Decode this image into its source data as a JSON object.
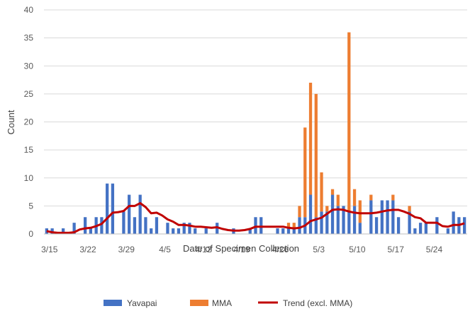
{
  "chart_data": {
    "type": "bar",
    "stacked": true,
    "xlabel": "Date of Specimen Collection",
    "ylabel": "Count",
    "ylim": [
      0,
      40
    ],
    "yticks": [
      0,
      5,
      10,
      15,
      20,
      25,
      30,
      35,
      40
    ],
    "grid": true,
    "legend_position": "bottom",
    "x_start_date": "3/14",
    "x_end_date": "5/29",
    "x_tick_labels": [
      "3/15",
      "3/22",
      "3/29",
      "4/5",
      "4/12",
      "4/19",
      "4/26",
      "5/3",
      "5/10",
      "5/17",
      "5/24"
    ],
    "colors": {
      "yavapai": "#4472C4",
      "mma": "#ED7D31",
      "trend": "#C00000",
      "grid": "#D9D9D9",
      "axis": "#BFBFBF"
    },
    "series": [
      {
        "name": "Yavapai",
        "kind": "bar",
        "points": [
          [
            "3/14",
            1
          ],
          [
            "3/15",
            1
          ],
          [
            "3/17",
            1
          ],
          [
            "3/19",
            2
          ],
          [
            "3/21",
            3
          ],
          [
            "3/22",
            1
          ],
          [
            "3/23",
            3
          ],
          [
            "3/24",
            3
          ],
          [
            "3/25",
            9
          ],
          [
            "3/26",
            9
          ],
          [
            "3/28",
            4
          ],
          [
            "3/29",
            7
          ],
          [
            "3/30",
            3
          ],
          [
            "3/31",
            7
          ],
          [
            "4/1",
            3
          ],
          [
            "4/2",
            1
          ],
          [
            "4/3",
            3
          ],
          [
            "4/5",
            2
          ],
          [
            "4/6",
            1
          ],
          [
            "4/7",
            1
          ],
          [
            "4/8",
            2
          ],
          [
            "4/9",
            2
          ],
          [
            "4/10",
            1
          ],
          [
            "4/12",
            1
          ],
          [
            "4/14",
            2
          ],
          [
            "4/17",
            1
          ],
          [
            "4/20",
            1
          ],
          [
            "4/21",
            3
          ],
          [
            "4/22",
            3
          ],
          [
            "4/25",
            1
          ],
          [
            "4/26",
            1
          ],
          [
            "4/27",
            1
          ],
          [
            "4/28",
            1
          ],
          [
            "4/29",
            3
          ],
          [
            "4/30",
            3
          ],
          [
            "5/1",
            7
          ],
          [
            "5/2",
            3
          ],
          [
            "5/3",
            4
          ],
          [
            "5/4",
            4
          ],
          [
            "5/5",
            7
          ],
          [
            "5/6",
            5
          ],
          [
            "5/7",
            5
          ],
          [
            "5/8",
            4
          ],
          [
            "5/9",
            5
          ],
          [
            "5/10",
            2
          ],
          [
            "5/12",
            6
          ],
          [
            "5/13",
            3
          ],
          [
            "5/14",
            6
          ],
          [
            "5/15",
            6
          ],
          [
            "5/16",
            6
          ],
          [
            "5/17",
            3
          ],
          [
            "5/19",
            4
          ],
          [
            "5/20",
            1
          ],
          [
            "5/21",
            2
          ],
          [
            "5/22",
            2
          ],
          [
            "5/24",
            3
          ],
          [
            "5/26",
            1
          ],
          [
            "5/27",
            4
          ],
          [
            "5/28",
            3
          ],
          [
            "5/29",
            3
          ]
        ]
      },
      {
        "name": "MMA",
        "kind": "bar",
        "points": [
          [
            "4/27",
            1
          ],
          [
            "4/28",
            1
          ],
          [
            "4/29",
            2
          ],
          [
            "4/30",
            16
          ],
          [
            "5/1",
            20
          ],
          [
            "5/2",
            22
          ],
          [
            "5/3",
            7
          ],
          [
            "5/4",
            1
          ],
          [
            "5/5",
            1
          ],
          [
            "5/6",
            2
          ],
          [
            "5/8",
            32
          ],
          [
            "5/9",
            3
          ],
          [
            "5/10",
            4
          ],
          [
            "5/12",
            1
          ],
          [
            "5/16",
            1
          ],
          [
            "5/19",
            1
          ]
        ]
      },
      {
        "name": "Trend (excl. MMA)",
        "kind": "line",
        "points": [
          [
            "3/14",
            0.5
          ],
          [
            "3/15",
            0.3
          ],
          [
            "3/16",
            0.2
          ],
          [
            "3/17",
            0.2
          ],
          [
            "3/18",
            0.2
          ],
          [
            "3/19",
            0.3
          ],
          [
            "3/20",
            0.8
          ],
          [
            "3/21",
            1.0
          ],
          [
            "3/22",
            1.1
          ],
          [
            "3/23",
            1.4
          ],
          [
            "3/24",
            1.8
          ],
          [
            "3/25",
            2.8
          ],
          [
            "3/26",
            3.8
          ],
          [
            "3/27",
            3.9
          ],
          [
            "3/28",
            4.1
          ],
          [
            "3/29",
            5.0
          ],
          [
            "3/30",
            5.0
          ],
          [
            "3/31",
            5.5
          ],
          [
            "4/1",
            4.8
          ],
          [
            "4/2",
            3.7
          ],
          [
            "4/3",
            3.8
          ],
          [
            "4/4",
            3.3
          ],
          [
            "4/5",
            2.6
          ],
          [
            "4/6",
            2.2
          ],
          [
            "4/7",
            1.6
          ],
          [
            "4/8",
            1.6
          ],
          [
            "4/9",
            1.5
          ],
          [
            "4/10",
            1.3
          ],
          [
            "4/11",
            1.3
          ],
          [
            "4/12",
            1.2
          ],
          [
            "4/13",
            1.1
          ],
          [
            "4/14",
            1.2
          ],
          [
            "4/15",
            0.9
          ],
          [
            "4/16",
            0.7
          ],
          [
            "4/17",
            0.6
          ],
          [
            "4/18",
            0.6
          ],
          [
            "4/19",
            0.7
          ],
          [
            "4/20",
            0.9
          ],
          [
            "4/21",
            1.3
          ],
          [
            "4/22",
            1.3
          ],
          [
            "4/23",
            1.3
          ],
          [
            "4/24",
            1.3
          ],
          [
            "4/25",
            1.3
          ],
          [
            "4/26",
            1.3
          ],
          [
            "4/27",
            1.1
          ],
          [
            "4/28",
            1.0
          ],
          [
            "4/29",
            1.1
          ],
          [
            "4/30",
            1.5
          ],
          [
            "5/1",
            2.3
          ],
          [
            "5/2",
            2.6
          ],
          [
            "5/3",
            2.9
          ],
          [
            "5/4",
            3.6
          ],
          [
            "5/5",
            4.3
          ],
          [
            "5/6",
            4.4
          ],
          [
            "5/7",
            4.3
          ],
          [
            "5/8",
            4.0
          ],
          [
            "5/9",
            3.8
          ],
          [
            "5/10",
            3.7
          ],
          [
            "5/11",
            3.7
          ],
          [
            "5/12",
            3.7
          ],
          [
            "5/13",
            3.8
          ],
          [
            "5/14",
            4.0
          ],
          [
            "5/15",
            4.2
          ],
          [
            "5/16",
            4.3
          ],
          [
            "5/17",
            4.3
          ],
          [
            "5/18",
            4.0
          ],
          [
            "5/19",
            3.6
          ],
          [
            "5/20",
            3.0
          ],
          [
            "5/21",
            2.8
          ],
          [
            "5/22",
            2.0
          ],
          [
            "5/23",
            2.0
          ],
          [
            "5/24",
            2.0
          ],
          [
            "5/25",
            1.4
          ],
          [
            "5/26",
            1.3
          ],
          [
            "5/27",
            1.6
          ],
          [
            "5/28",
            1.6
          ],
          [
            "5/29",
            1.9
          ]
        ]
      }
    ]
  }
}
